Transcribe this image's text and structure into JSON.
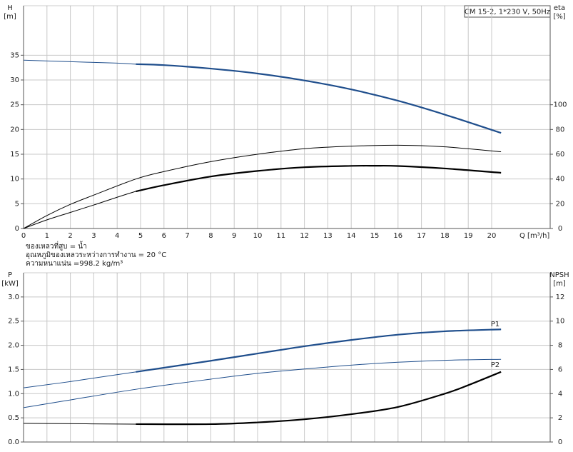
{
  "pump_label": "CM 15-2, 1*230 V, 50Hz",
  "notes": [
    "ของเหลวที่สูบ = น้ำ",
    "อุณหภูมิของเหลวระหว่างการทำงาน = 20 °C",
    "ความหนาแน่น =998.2 kg/m³"
  ],
  "chart_data": [
    {
      "type": "line",
      "ylabel": "H",
      "yunit": "[m]",
      "y2label": "eta",
      "y2unit": "[%]",
      "xlabel": "Q [m³/h]",
      "xlim": [
        0,
        22.5
      ],
      "xticks": [
        0,
        1,
        2,
        3,
        4,
        5,
        6,
        7,
        8,
        9,
        10,
        11,
        12,
        13,
        14,
        15,
        16,
        17,
        18,
        19,
        20
      ],
      "show_xtick_labels": true,
      "ylim": [
        0,
        45
      ],
      "yticks": [
        0,
        5,
        10,
        15,
        20,
        25,
        30,
        35
      ],
      "y2lim": [
        0,
        180
      ],
      "y2ticks": [
        0,
        20,
        40,
        60,
        80,
        100
      ],
      "grid": true,
      "series": [
        {
          "color": "#1f4e8c",
          "axis": "y",
          "thick_from": 4.8,
          "x": [
            0,
            2,
            4,
            4.8,
            6,
            8,
            10,
            12,
            14,
            16,
            18,
            20.4
          ],
          "values": [
            34,
            33.7,
            33.4,
            33.2,
            33,
            32.3,
            31.3,
            29.9,
            28.1,
            25.8,
            23,
            19.3
          ]
        },
        {
          "color": "#000000",
          "axis": "y2",
          "x": [
            0,
            1,
            2,
            3,
            4.8,
            6,
            8,
            10,
            12,
            14,
            16,
            18,
            20.4
          ],
          "values": [
            0,
            10.5,
            19.5,
            27,
            40,
            46,
            54,
            60,
            64.5,
            66.5,
            67.3,
            66,
            62
          ]
        },
        {
          "color": "#000000",
          "axis": "y2",
          "thick_from": 4.8,
          "x": [
            0,
            1,
            2,
            3,
            4.8,
            6,
            8,
            10,
            12,
            14,
            15,
            16,
            18,
            20.4
          ],
          "values": [
            0,
            7,
            13,
            19,
            30,
            35,
            42,
            46.5,
            49.5,
            50.6,
            50.7,
            50.5,
            48.5,
            45
          ]
        }
      ]
    },
    {
      "type": "line",
      "ylabel": "P",
      "yunit": "[kW]",
      "y2label": "NPSH",
      "y2unit": "[m]",
      "xlim": [
        0,
        22.5
      ],
      "xticks": [
        0,
        1,
        2,
        3,
        4,
        5,
        6,
        7,
        8,
        9,
        10,
        11,
        12,
        13,
        14,
        15,
        16,
        17,
        18,
        19,
        20
      ],
      "show_xtick_labels": false,
      "ylim": [
        0,
        3.5
      ],
      "yticks": [
        {
          "value": 0,
          "label": "0.0"
        },
        0.5,
        {
          "value": 1,
          "label": "1.0"
        },
        1.5,
        {
          "value": 2,
          "label": "2.0"
        },
        2.5,
        {
          "value": 3,
          "label": "3.0"
        }
      ],
      "y2lim": [
        0,
        14
      ],
      "y2ticks": [
        0,
        2,
        4,
        6,
        8,
        10,
        12
      ],
      "grid": true,
      "series": [
        {
          "name": "P1",
          "label_pos": "above",
          "color": "#1f4e8c",
          "axis": "y",
          "thick_from": 4.8,
          "x": [
            0,
            2,
            4.8,
            8,
            10,
            12,
            14,
            16,
            18,
            20.4
          ],
          "values": [
            1.12,
            1.25,
            1.45,
            1.68,
            1.83,
            1.98,
            2.11,
            2.22,
            2.29,
            2.33
          ]
        },
        {
          "name": "P2",
          "label_pos": "below",
          "color": "#1f4e8c",
          "axis": "y",
          "x": [
            0,
            2,
            4.8,
            8,
            10,
            12,
            14,
            16,
            18,
            20.4
          ],
          "values": [
            0.71,
            0.87,
            1.09,
            1.3,
            1.42,
            1.51,
            1.59,
            1.65,
            1.69,
            1.71
          ]
        },
        {
          "color": "#000000",
          "axis": "y2",
          "thick_from": 4.8,
          "x": [
            0,
            4.8,
            8,
            10,
            12,
            14,
            16,
            18,
            19,
            20.4
          ],
          "values": [
            1.54,
            1.48,
            1.48,
            1.62,
            1.88,
            2.3,
            2.9,
            4.0,
            4.7,
            5.8
          ]
        }
      ]
    }
  ]
}
